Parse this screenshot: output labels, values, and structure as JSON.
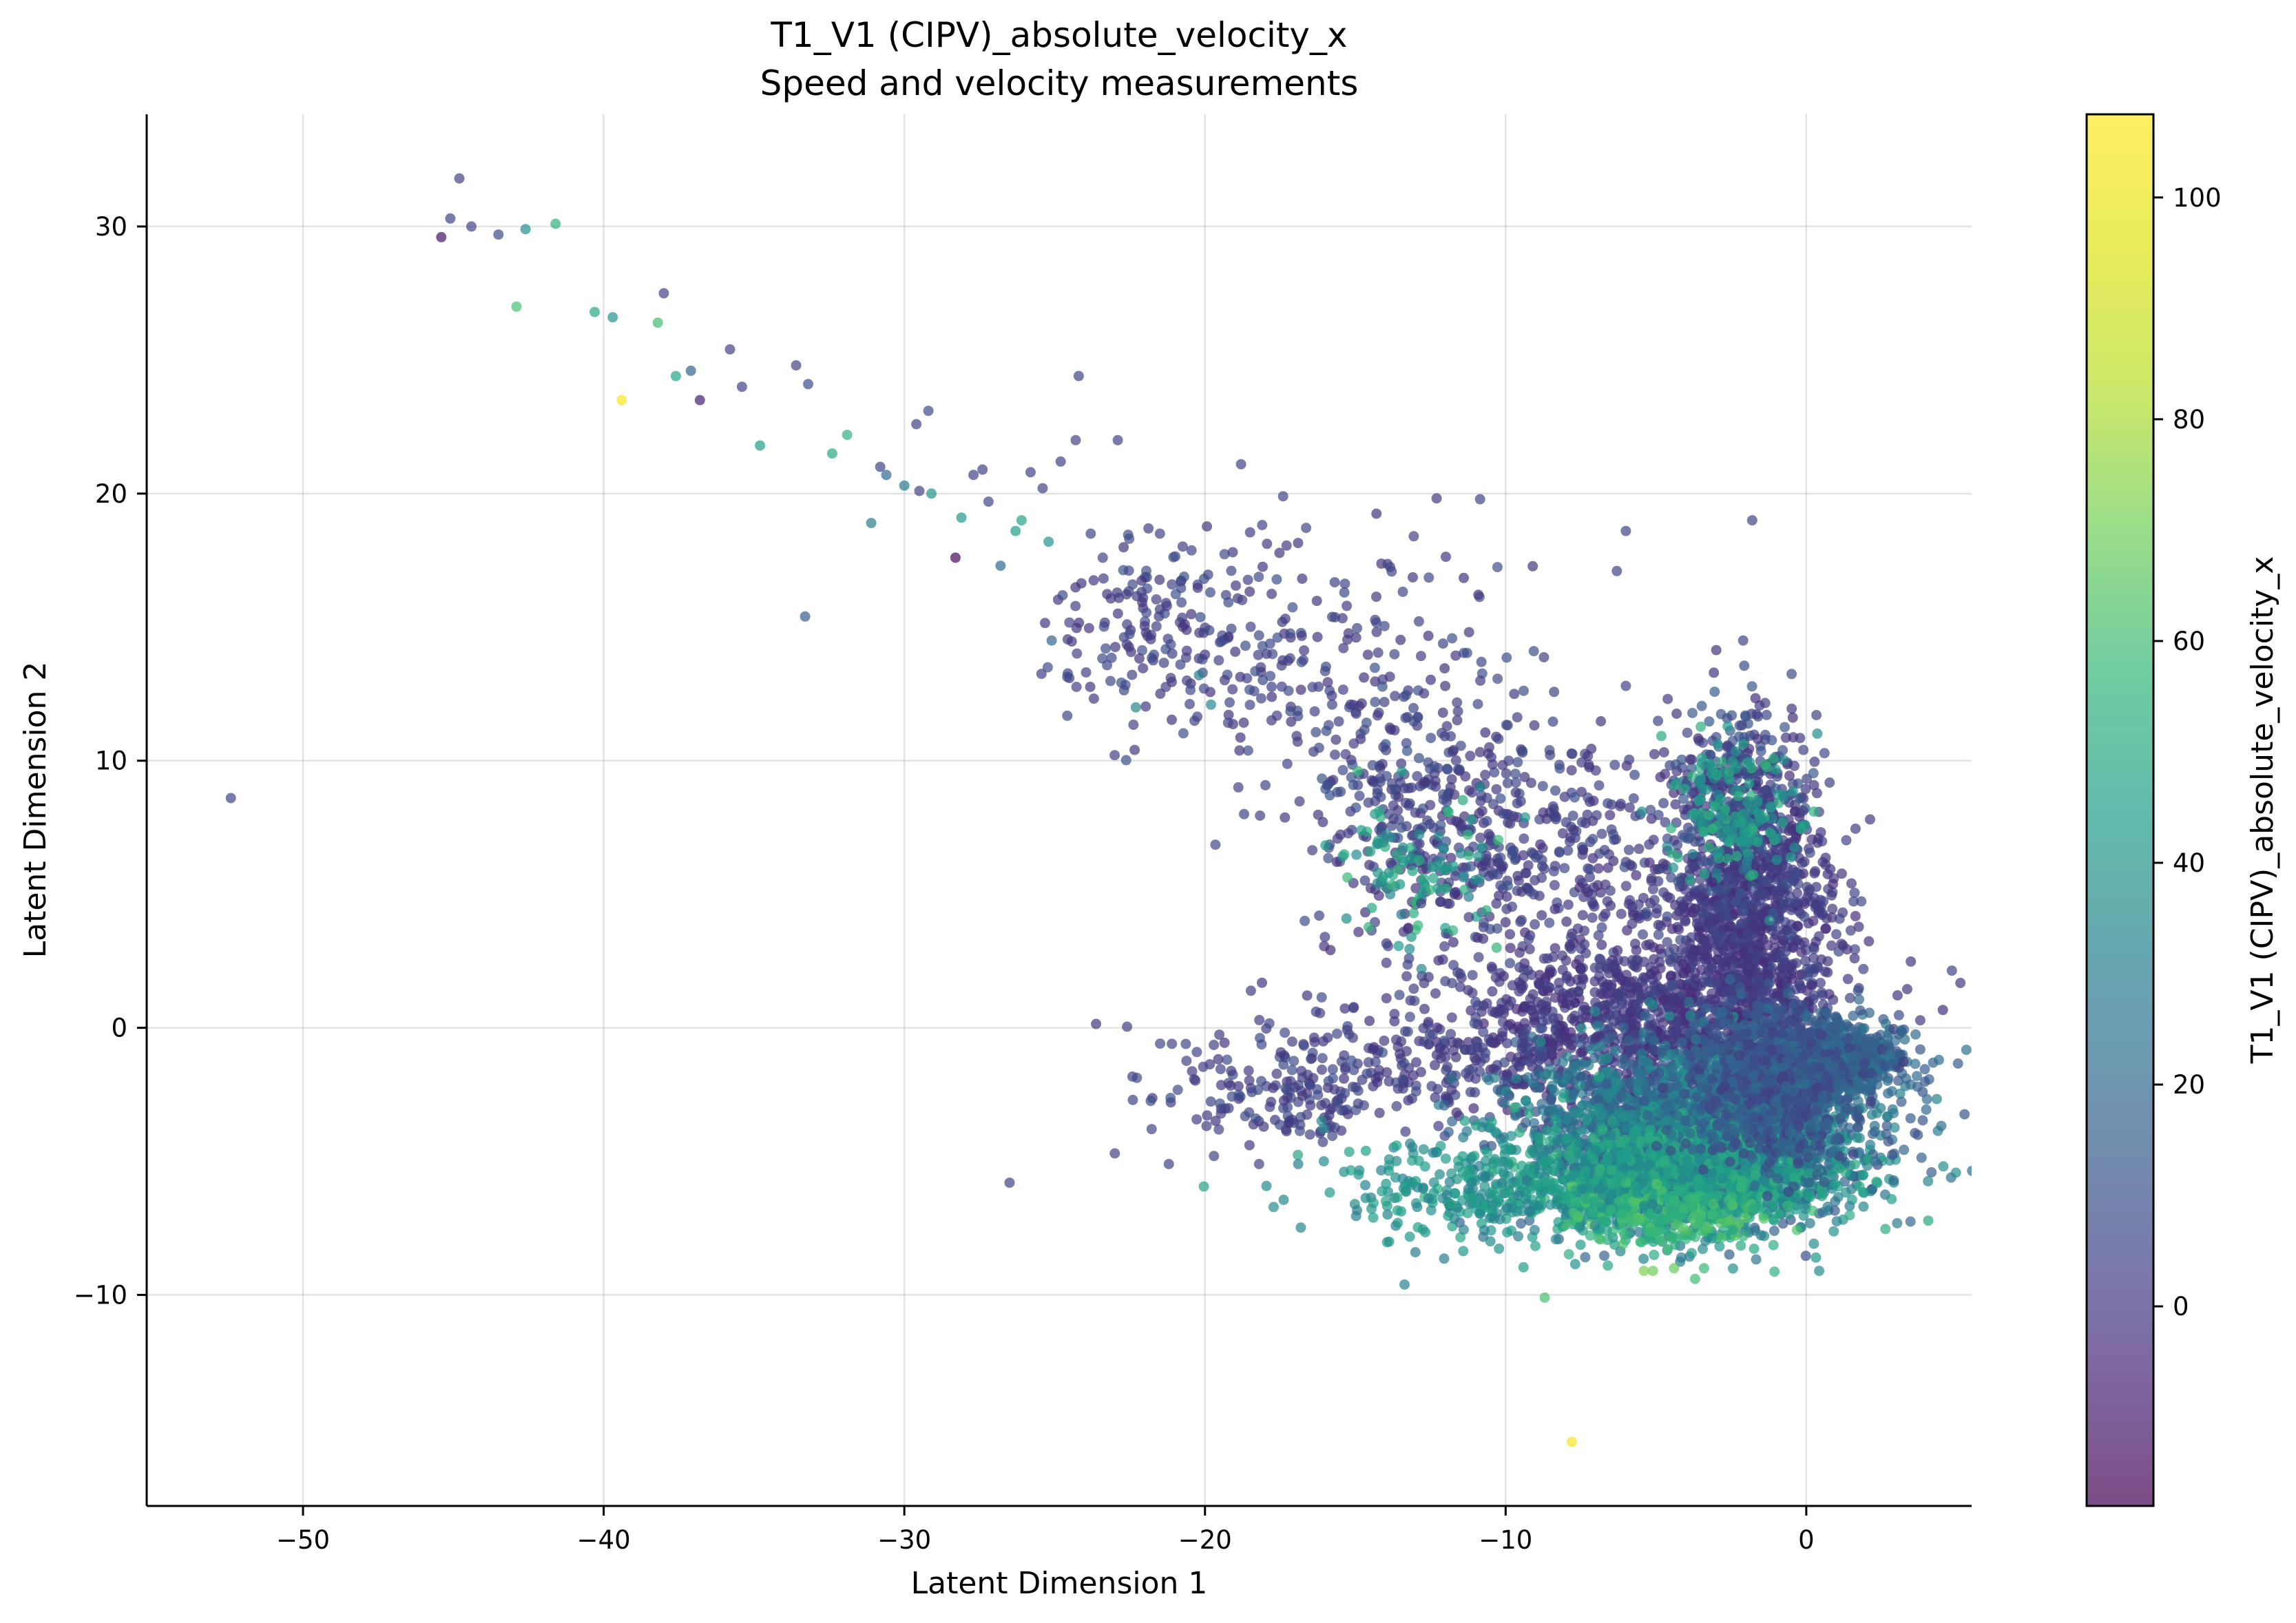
{
  "chart_data": {
    "type": "scatter",
    "title": "T1_V1 (CIPV)_absolute_velocity_x",
    "subtitle": "Speed and velocity measurements",
    "xlabel": "Latent Dimension 1",
    "ylabel": "Latent Dimension 2",
    "xlim": [
      -55.2,
      5.5
    ],
    "ylim": [
      -17.9,
      34.2
    ],
    "xticks": [
      -50,
      -40,
      -30,
      -20,
      -10,
      0
    ],
    "yticks": [
      -10,
      0,
      10,
      20,
      30
    ],
    "xtick_labels": [
      "−50",
      "−40",
      "−30",
      "−20",
      "−10",
      "0"
    ],
    "ytick_labels": [
      "−10",
      "0",
      "10",
      "20",
      "30"
    ],
    "grid": true,
    "colormap": "viridis",
    "point_alpha": 0.7,
    "colorbar": {
      "label": "T1_V1 (CIPV)_absolute_velocity_x",
      "range": [
        -18,
        107.5
      ],
      "ticks": [
        0,
        20,
        40,
        60,
        80,
        100
      ],
      "tick_labels": [
        "0",
        "20",
        "40",
        "60",
        "80",
        "100"
      ]
    },
    "points": [
      {
        "x": -52.4,
        "y": 8.6,
        "c": 5
      },
      {
        "x": -45.4,
        "y": 29.6,
        "c": -12
      },
      {
        "x": -45.1,
        "y": 30.3,
        "c": 5
      },
      {
        "x": -44.8,
        "y": 31.8,
        "c": 5
      },
      {
        "x": -44.4,
        "y": 30.0,
        "c": 5
      },
      {
        "x": -43.5,
        "y": 29.7,
        "c": 8
      },
      {
        "x": -42.9,
        "y": 27.0,
        "c": 62
      },
      {
        "x": -42.6,
        "y": 29.9,
        "c": 38
      },
      {
        "x": -41.6,
        "y": 30.1,
        "c": 55
      },
      {
        "x": -40.3,
        "y": 26.8,
        "c": 50
      },
      {
        "x": -39.7,
        "y": 26.6,
        "c": 40
      },
      {
        "x": -39.4,
        "y": 23.5,
        "c": 105
      },
      {
        "x": -38.2,
        "y": 26.4,
        "c": 60
      },
      {
        "x": -38.0,
        "y": 27.5,
        "c": 5
      },
      {
        "x": -37.6,
        "y": 24.4,
        "c": 48
      },
      {
        "x": -37.1,
        "y": 24.6,
        "c": 18
      },
      {
        "x": -36.8,
        "y": 23.5,
        "c": -8
      },
      {
        "x": -35.8,
        "y": 25.4,
        "c": 5
      },
      {
        "x": -35.4,
        "y": 24.0,
        "c": 5
      },
      {
        "x": -34.8,
        "y": 21.8,
        "c": 45
      },
      {
        "x": -33.6,
        "y": 24.8,
        "c": 5
      },
      {
        "x": -33.3,
        "y": 15.4,
        "c": 15
      },
      {
        "x": -33.2,
        "y": 24.1,
        "c": 8
      },
      {
        "x": -32.4,
        "y": 21.5,
        "c": 50
      },
      {
        "x": -31.9,
        "y": 22.2,
        "c": 55
      },
      {
        "x": -31.1,
        "y": 18.9,
        "c": 30
      },
      {
        "x": -30.8,
        "y": 21.0,
        "c": 5
      },
      {
        "x": -30.6,
        "y": 20.7,
        "c": 20
      },
      {
        "x": -30.0,
        "y": 20.3,
        "c": 30
      },
      {
        "x": -29.6,
        "y": 22.6,
        "c": 5
      },
      {
        "x": -29.5,
        "y": 20.1,
        "c": 5
      },
      {
        "x": -29.2,
        "y": 23.1,
        "c": 8
      },
      {
        "x": -29.1,
        "y": 20.0,
        "c": 40
      },
      {
        "x": -28.3,
        "y": 17.6,
        "c": -15
      },
      {
        "x": -28.1,
        "y": 19.1,
        "c": 42
      },
      {
        "x": -27.7,
        "y": 20.7,
        "c": 5
      },
      {
        "x": -27.4,
        "y": 20.9,
        "c": 5
      },
      {
        "x": -27.2,
        "y": 19.7,
        "c": 8
      },
      {
        "x": -26.8,
        "y": 17.3,
        "c": 20
      },
      {
        "x": -26.3,
        "y": 18.6,
        "c": 45
      },
      {
        "x": -26.1,
        "y": 19.0,
        "c": 48
      },
      {
        "x": -25.8,
        "y": 20.8,
        "c": 5
      },
      {
        "x": -25.4,
        "y": 20.2,
        "c": 5
      },
      {
        "x": -25.2,
        "y": 18.2,
        "c": 40
      },
      {
        "x": -25.1,
        "y": 14.5,
        "c": 18
      },
      {
        "x": -24.8,
        "y": 21.2,
        "c": 5
      },
      {
        "x": -24.3,
        "y": 22.0,
        "c": 5
      },
      {
        "x": -24.2,
        "y": 24.4,
        "c": 5
      },
      {
        "x": -23.8,
        "y": 18.5,
        "c": 5
      },
      {
        "x": -23.4,
        "y": 17.6,
        "c": 5
      },
      {
        "x": -22.9,
        "y": 22.0,
        "c": 5
      },
      {
        "x": -22.3,
        "y": 12.0,
        "c": 35
      },
      {
        "x": -21.5,
        "y": 18.5,
        "c": 5
      },
      {
        "x": -21.1,
        "y": 16.6,
        "c": 5
      },
      {
        "x": -20.6,
        "y": 13.0,
        "c": 5
      },
      {
        "x": -20.2,
        "y": 13.2,
        "c": 30
      },
      {
        "x": -19.8,
        "y": 12.1,
        "c": 35
      },
      {
        "x": -19.3,
        "y": 16.2,
        "c": 5
      },
      {
        "x": -18.8,
        "y": 21.1,
        "c": 5
      },
      {
        "x": -18.7,
        "y": 8.0,
        "c": 5
      },
      {
        "x": -17.4,
        "y": 19.9,
        "c": 5
      },
      {
        "x": -16.2,
        "y": 4.2,
        "c": 5
      },
      {
        "x": -14.8,
        "y": 7.4,
        "c": 45
      },
      {
        "x": -14.5,
        "y": 6.6,
        "c": 50
      },
      {
        "x": -12.4,
        "y": 5.6,
        "c": 48
      },
      {
        "x": -12.8,
        "y": 2.2,
        "c": 35
      },
      {
        "x": -10.3,
        "y": 3.0,
        "c": 55
      },
      {
        "x": -9.9,
        "y": 10.0,
        "c": 5
      },
      {
        "x": -6.0,
        "y": 18.6,
        "c": 5
      },
      {
        "x": -6.3,
        "y": 17.1,
        "c": 5
      },
      {
        "x": -1.8,
        "y": 19.0,
        "c": 5
      },
      {
        "x": -6.0,
        "y": 12.8,
        "c": 5
      },
      {
        "x": -2.1,
        "y": 14.5,
        "c": 5
      },
      {
        "x": -21.1,
        "y": -0.6,
        "c": 5
      },
      {
        "x": -22.4,
        "y": -2.7,
        "c": 5
      },
      {
        "x": -23.0,
        "y": -4.7,
        "c": 5
      },
      {
        "x": -26.5,
        "y": -5.8,
        "c": 5
      },
      {
        "x": -21.2,
        "y": -5.1,
        "c": 5
      },
      {
        "x": -19.7,
        "y": -4.8,
        "c": 5
      },
      {
        "x": -18.2,
        "y": -5.1,
        "c": 5
      },
      {
        "x": -16.9,
        "y": -5.1,
        "c": 30
      },
      {
        "x": -13.0,
        "y": -8.4,
        "c": 30
      },
      {
        "x": -6.6,
        "y": -8.9,
        "c": 50
      },
      {
        "x": -8.7,
        "y": -10.1,
        "c": 62
      },
      {
        "x": -6.1,
        "y": -8.1,
        "c": 62
      },
      {
        "x": -5.1,
        "y": -9.1,
        "c": 70
      },
      {
        "x": -4.4,
        "y": -9.0,
        "c": 68
      },
      {
        "x": -3.7,
        "y": -9.4,
        "c": 60
      },
      {
        "x": -3.4,
        "y": -9.0,
        "c": 58
      },
      {
        "x": -5.4,
        "y": -9.1,
        "c": 72
      },
      {
        "x": -7.8,
        "y": -15.5,
        "c": 105
      },
      {
        "x": 1.9,
        "y": 2.2,
        "c": 5
      },
      {
        "x": 2.7,
        "y": -0.4,
        "c": 20
      }
    ],
    "density_clouds": [
      {
        "n": 260,
        "cx": -15.5,
        "cy": 13.0,
        "sx": 3.5,
        "sy": 2.6,
        "rot": -25,
        "cmin": -2,
        "cmax": 10,
        "seed": 11
      },
      {
        "n": 140,
        "cx": -21.5,
        "cy": 15.0,
        "sx": 1.8,
        "sy": 1.6,
        "cmin": -2,
        "cmax": 10,
        "seed": 12
      },
      {
        "n": 420,
        "cx": -8.5,
        "cy": 6.0,
        "sx": 3.2,
        "sy": 2.3,
        "cmin": -3,
        "cmax": 8,
        "seed": 13
      },
      {
        "n": 180,
        "cx": -13.0,
        "cy": 8.5,
        "sx": 2.2,
        "sy": 1.8,
        "cmin": -2,
        "cmax": 12,
        "seed": 14
      },
      {
        "n": 90,
        "cx": -13.2,
        "cy": 6.0,
        "sx": 1.5,
        "sy": 1.5,
        "cmin": 30,
        "cmax": 58,
        "seed": 15
      },
      {
        "n": 1100,
        "cx": -1.8,
        "cy": 3.5,
        "sx": 1.4,
        "sy": 2.8,
        "cmin": -4,
        "cmax": 7,
        "seed": 16
      },
      {
        "n": 300,
        "cx": -2.2,
        "cy": 8.5,
        "sx": 1.1,
        "sy": 2.0,
        "cmin": -2,
        "cmax": 15,
        "seed": 17
      },
      {
        "n": 160,
        "cx": -2.5,
        "cy": 8.0,
        "sx": 1.0,
        "sy": 1.4,
        "cmin": 30,
        "cmax": 55,
        "seed": 18
      },
      {
        "n": 900,
        "cx": -5.5,
        "cy": 0.2,
        "sx": 3.2,
        "sy": 1.6,
        "cmin": -5,
        "cmax": 6,
        "seed": 19
      },
      {
        "n": 240,
        "cx": -12.5,
        "cy": -1.4,
        "sx": 3.5,
        "sy": 1.2,
        "cmin": -2,
        "cmax": 8,
        "seed": 20
      },
      {
        "n": 130,
        "cx": -17.5,
        "cy": -2.5,
        "sx": 2.0,
        "sy": 1.0,
        "cmin": -2,
        "cmax": 10,
        "seed": 21
      },
      {
        "n": 2600,
        "cx": -3.5,
        "cy": -4.0,
        "sx": 2.8,
        "sy": 1.6,
        "cmin": 10,
        "cmax": 40,
        "seed": 22
      },
      {
        "n": 1100,
        "cx": -4.8,
        "cy": -5.6,
        "sx": 2.6,
        "sy": 1.0,
        "cmin": 32,
        "cmax": 55,
        "seed": 23
      },
      {
        "n": 200,
        "cx": -4.8,
        "cy": -7.0,
        "sx": 1.6,
        "sy": 0.5,
        "cmin": 48,
        "cmax": 66,
        "seed": 24
      },
      {
        "n": 700,
        "cx": 0.8,
        "cy": -1.2,
        "sx": 1.2,
        "sy": 0.6,
        "cmin": 12,
        "cmax": 26,
        "seed": 25
      },
      {
        "n": 260,
        "cx": -11.0,
        "cy": -6.0,
        "sx": 2.6,
        "sy": 1.0,
        "cmin": 30,
        "cmax": 48,
        "seed": 26
      },
      {
        "n": 800,
        "cx": -1.0,
        "cy": -2.0,
        "sx": 1.6,
        "sy": 1.5,
        "cmin": 2,
        "cmax": 22,
        "seed": 27
      }
    ]
  }
}
